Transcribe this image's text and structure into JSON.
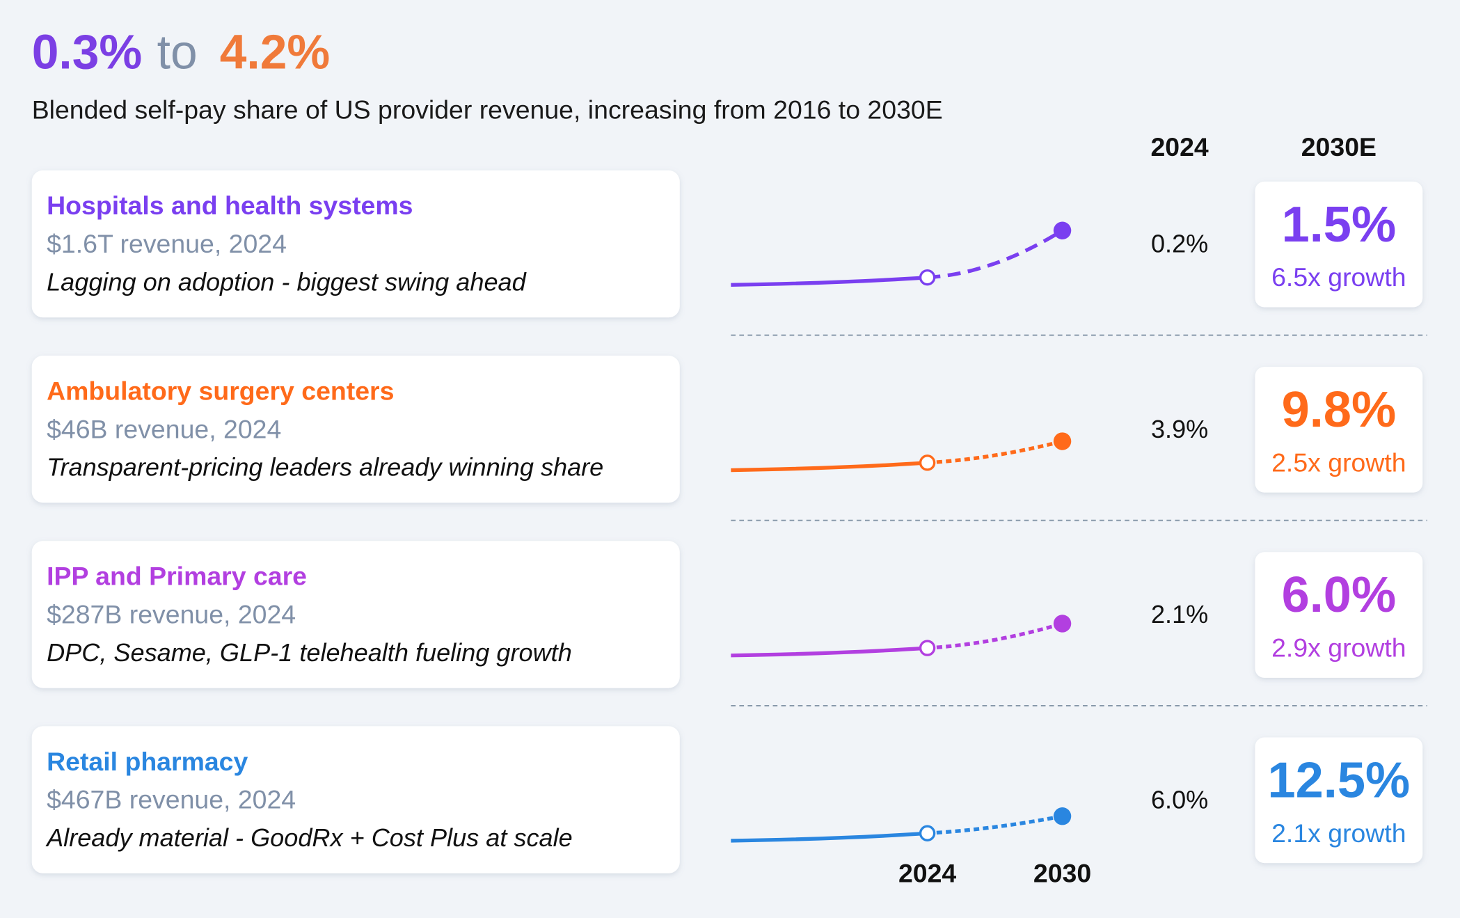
{
  "chart_data": {
    "type": "sparkline",
    "title_from": "0.3%",
    "title_connector": "to",
    "title_to": "4.2%",
    "subtitle": "Blended self-pay share of US provider revenue, increasing from 2016 to 2030E",
    "column_headers": [
      "2024",
      "2030E"
    ],
    "x_labels": [
      "2024",
      "2030"
    ],
    "rows": [
      {
        "name": "Hospitals and health systems",
        "color": "#7a3ff0",
        "revenue": "$1.6T revenue, 2024",
        "note": "Lagging on adoption -  biggest swing ahead",
        "values": [
          0.2,
          1.5
        ],
        "value_labels": [
          "0.2%",
          "1.5%"
        ],
        "growth": "6.5x growth"
      },
      {
        "name": "Ambulatory surgery centers",
        "color": "#ff6a1a",
        "revenue": "$46B revenue, 2024",
        "note": "Transparent-pricing leaders already winning share",
        "values": [
          3.9,
          9.8
        ],
        "value_labels": [
          "3.9%",
          "9.8%"
        ],
        "growth": "2.5x growth"
      },
      {
        "name": "IPP and Primary care",
        "color": "#b23fe0",
        "revenue": "$287B revenue, 2024",
        "note": "DPC, Sesame, GLP-1 telehealth fueling growth",
        "values": [
          2.1,
          6.0
        ],
        "value_labels": [
          "2.1%",
          "6.0%"
        ],
        "growth": "2.9x growth"
      },
      {
        "name": "Retail pharmacy",
        "color": "#2a86e0",
        "revenue": "$467B revenue, 2024",
        "note": "Already material - GoodRx + Cost Plus at scale",
        "values": [
          6.0,
          12.5
        ],
        "value_labels": [
          "6.0%",
          "12.5%"
        ],
        "growth": "2.1x growth"
      }
    ]
  }
}
